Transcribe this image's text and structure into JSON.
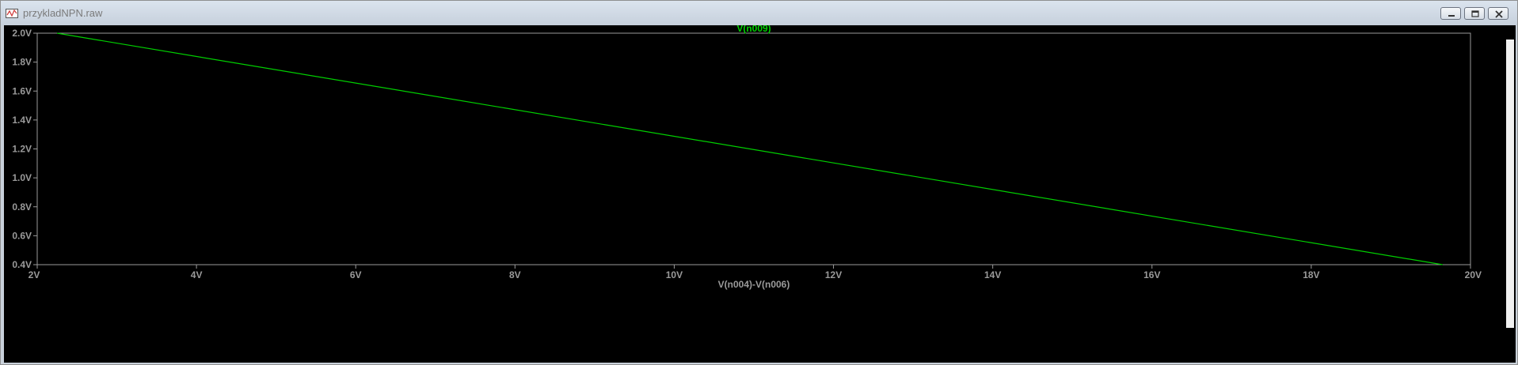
{
  "window": {
    "title": "przykladNPN.raw",
    "icon": "waveform-app-icon",
    "buttons": [
      {
        "name": "minimize",
        "icon": "minimize-icon"
      },
      {
        "name": "restore",
        "icon": "restore-icon"
      },
      {
        "name": "close",
        "icon": "close-icon"
      }
    ]
  },
  "colors": {
    "trace": "#00d000",
    "background": "#000000",
    "axis": "#9a9a9a",
    "grid": "#555555"
  },
  "chart_data": {
    "type": "line",
    "title": "V(n009)",
    "xlabel": "V(n004)-V(n006)",
    "ylabel": "",
    "xlim": [
      2,
      20
    ],
    "ylim": [
      0.4,
      2.0
    ],
    "x_ticks": [
      "2V",
      "4V",
      "6V",
      "8V",
      "10V",
      "12V",
      "14V",
      "16V",
      "18V",
      "20V"
    ],
    "x_tick_values": [
      2,
      4,
      6,
      8,
      10,
      12,
      14,
      16,
      18,
      20
    ],
    "y_ticks": [
      "2.0V",
      "1.8V",
      "1.6V",
      "1.4V",
      "1.2V",
      "1.0V",
      "0.8V",
      "0.6V",
      "0.4V"
    ],
    "y_tick_values": [
      2.0,
      1.8,
      1.6,
      1.4,
      1.2,
      1.0,
      0.8,
      0.6,
      0.4
    ],
    "grid": false,
    "series": [
      {
        "name": "V(n009)",
        "x": [
          2.25,
          19.65
        ],
        "y": [
          2.0,
          0.4
        ]
      }
    ]
  }
}
